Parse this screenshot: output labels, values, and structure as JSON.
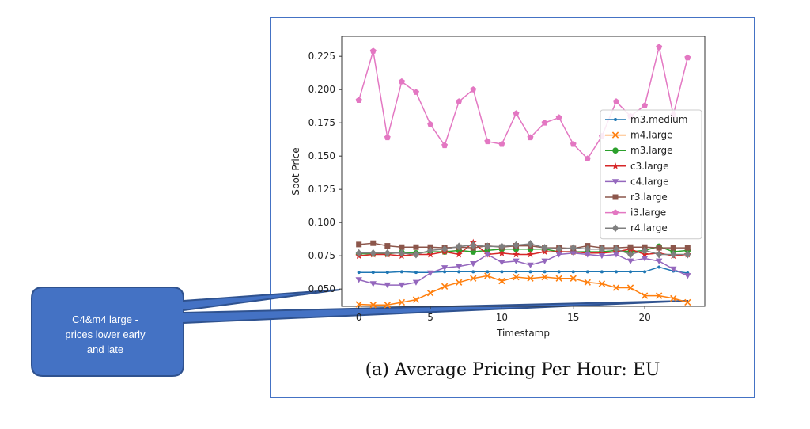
{
  "caption": "(a)  Average Pricing Per Hour: EU",
  "callout": {
    "text": "C4&m4 large  -\nprices lower early\nand late"
  },
  "colors": {
    "frame": "#4472c4",
    "callout_fill": "#4472c4",
    "callout_stroke": "#2f528f"
  },
  "chart_data": {
    "type": "line",
    "xlabel": "Timestamp",
    "ylabel": "Spot Price",
    "xlim": [
      -1.2,
      24.2
    ],
    "ylim": [
      0.037,
      0.24
    ],
    "xticks": [
      0,
      5,
      10,
      15,
      20
    ],
    "yticks": [
      0.05,
      0.075,
      0.1,
      0.125,
      0.15,
      0.175,
      0.2,
      0.225
    ],
    "ytick_labels": [
      "0.050",
      "0.075",
      "0.100",
      "0.125",
      "0.150",
      "0.175",
      "0.200",
      "0.225"
    ],
    "legend_position": "right",
    "grid": false,
    "x": [
      0,
      1,
      2,
      3,
      4,
      5,
      6,
      7,
      8,
      9,
      10,
      11,
      12,
      13,
      14,
      15,
      16,
      17,
      18,
      19,
      20,
      21,
      22,
      23
    ],
    "series": [
      {
        "name": "m3.medium",
        "color": "#1f77b4",
        "marker": "dot",
        "values": [
          0.0625,
          0.0625,
          0.0625,
          0.063,
          0.0625,
          0.0625,
          0.063,
          0.063,
          0.063,
          0.063,
          0.063,
          0.063,
          0.063,
          0.063,
          0.063,
          0.063,
          0.063,
          0.063,
          0.063,
          0.063,
          0.063,
          0.0665,
          0.0635,
          0.062
        ]
      },
      {
        "name": "m4.large",
        "color": "#ff7f0e",
        "marker": "x",
        "values": [
          0.0385,
          0.038,
          0.038,
          0.04,
          0.042,
          0.047,
          0.052,
          0.055,
          0.058,
          0.06,
          0.056,
          0.059,
          0.058,
          0.059,
          0.058,
          0.058,
          0.055,
          0.054,
          0.051,
          0.051,
          0.045,
          0.045,
          0.043,
          0.04
        ]
      },
      {
        "name": "m3.large",
        "color": "#2ca02c",
        "marker": "circle",
        "values": [
          0.0765,
          0.0765,
          0.0765,
          0.0775,
          0.077,
          0.078,
          0.078,
          0.079,
          0.078,
          0.079,
          0.08,
          0.08,
          0.08,
          0.08,
          0.078,
          0.078,
          0.078,
          0.078,
          0.079,
          0.078,
          0.079,
          0.082,
          0.078,
          0.079
        ]
      },
      {
        "name": "c3.large",
        "color": "#d62728",
        "marker": "star",
        "values": [
          0.075,
          0.076,
          0.076,
          0.075,
          0.076,
          0.076,
          0.078,
          0.076,
          0.085,
          0.076,
          0.077,
          0.076,
          0.076,
          0.078,
          0.078,
          0.078,
          0.077,
          0.077,
          0.078,
          0.08,
          0.076,
          0.077,
          0.075,
          0.076
        ]
      },
      {
        "name": "c4.large",
        "color": "#9467bd",
        "marker": "tri-down",
        "values": [
          0.057,
          0.054,
          0.053,
          0.053,
          0.055,
          0.062,
          0.066,
          0.067,
          0.069,
          0.076,
          0.07,
          0.071,
          0.068,
          0.071,
          0.076,
          0.077,
          0.076,
          0.075,
          0.076,
          0.071,
          0.073,
          0.071,
          0.065,
          0.06
        ]
      },
      {
        "name": "r3.large",
        "color": "#8c564b",
        "marker": "square",
        "values": [
          0.0835,
          0.0845,
          0.0825,
          0.0815,
          0.0815,
          0.0815,
          0.081,
          0.0815,
          0.081,
          0.0825,
          0.0815,
          0.0825,
          0.0825,
          0.081,
          0.081,
          0.0805,
          0.0825,
          0.081,
          0.081,
          0.0815,
          0.0815,
          0.081,
          0.081,
          0.081
        ]
      },
      {
        "name": "i3.large",
        "color": "#e377c2",
        "marker": "pentagon",
        "values": [
          0.192,
          0.229,
          0.164,
          0.206,
          0.198,
          0.174,
          0.158,
          0.191,
          0.2,
          0.161,
          0.159,
          0.182,
          0.164,
          0.175,
          0.179,
          0.159,
          0.148,
          0.165,
          0.191,
          0.18,
          0.188,
          0.232,
          0.181,
          0.224
        ]
      },
      {
        "name": "r4.large",
        "color": "#7f7f7f",
        "marker": "diamond",
        "values": [
          0.077,
          0.077,
          0.077,
          0.077,
          0.076,
          0.079,
          0.08,
          0.082,
          0.083,
          0.082,
          0.082,
          0.083,
          0.084,
          0.081,
          0.08,
          0.081,
          0.08,
          0.08,
          0.08,
          0.076,
          0.079,
          0.076,
          0.076,
          0.076
        ]
      }
    ]
  }
}
